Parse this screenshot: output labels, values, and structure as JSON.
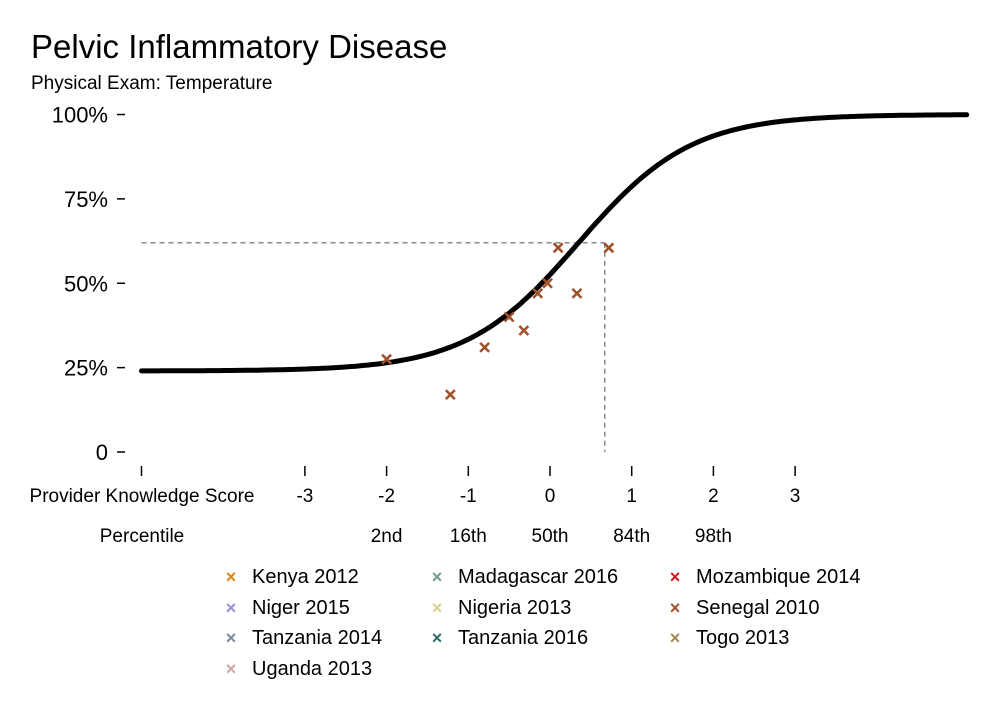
{
  "chart_data": {
    "type": "line",
    "title": "Pelvic Inflammatory Disease",
    "subtitle": "Physical Exam: Temperature",
    "xlabel": "Provider Knowledge Score",
    "percentile_label": "Percentile",
    "xlim": [
      -5,
      5.1
    ],
    "ylim": [
      0,
      100
    ],
    "y_ticks": [
      {
        "value": 0,
        "label": "0"
      },
      {
        "value": 25,
        "label": "25%"
      },
      {
        "value": 50,
        "label": "50%"
      },
      {
        "value": 75,
        "label": "75%"
      },
      {
        "value": 100,
        "label": "100%"
      }
    ],
    "x_ticks": [
      {
        "value": -5,
        "label": ""
      },
      {
        "value": -3,
        "label": "-3"
      },
      {
        "value": -2,
        "label": "-2"
      },
      {
        "value": -1,
        "label": "-1"
      },
      {
        "value": 0,
        "label": "0"
      },
      {
        "value": 1,
        "label": "1"
      },
      {
        "value": 2,
        "label": "2"
      },
      {
        "value": 3,
        "label": "3"
      }
    ],
    "percentile_ticks": [
      {
        "value": -2,
        "label": "2nd"
      },
      {
        "value": -1,
        "label": "16th"
      },
      {
        "value": 0,
        "label": "50th"
      },
      {
        "value": 1,
        "label": "84th"
      },
      {
        "value": 2,
        "label": "98th"
      }
    ],
    "curve": {
      "description": "logistic fit",
      "lower": 24,
      "upper": 100,
      "midpoint": 0.35,
      "slope": 1.45,
      "color": "#000000"
    },
    "reference_point": {
      "x": 0.67,
      "y": 62
    },
    "series": [
      {
        "name": "Kenya 2012",
        "color": "#e08214",
        "points": []
      },
      {
        "name": "Madagascar 2016",
        "color": "#6b9e8f",
        "points": []
      },
      {
        "name": "Mozambique 2014",
        "color": "#d7191c",
        "points": []
      },
      {
        "name": "Niger 2015",
        "color": "#9a8fd0",
        "points": []
      },
      {
        "name": "Nigeria 2013",
        "color": "#d9cf8c",
        "points": []
      },
      {
        "name": "Senegal 2010",
        "color": "#a0522d",
        "points": [
          {
            "x": -2.0,
            "y": 27.5
          },
          {
            "x": -1.22,
            "y": 17
          },
          {
            "x": -0.8,
            "y": 31
          },
          {
            "x": -0.5,
            "y": 40
          },
          {
            "x": -0.32,
            "y": 36
          },
          {
            "x": -0.15,
            "y": 47
          },
          {
            "x": -0.03,
            "y": 50
          },
          {
            "x": 0.1,
            "y": 60.5
          },
          {
            "x": 0.33,
            "y": 47
          },
          {
            "x": 0.72,
            "y": 60.5
          }
        ]
      },
      {
        "name": "Tanzania 2014",
        "color": "#7a8aa0",
        "points": []
      },
      {
        "name": "Tanzania 2016",
        "color": "#2f6f6a",
        "points": []
      },
      {
        "name": "Togo 2013",
        "color": "#a08c50",
        "points": []
      },
      {
        "name": "Uganda 2013",
        "color": "#c9a8a0",
        "points": []
      }
    ],
    "grid": false,
    "legend_position": "bottom"
  }
}
